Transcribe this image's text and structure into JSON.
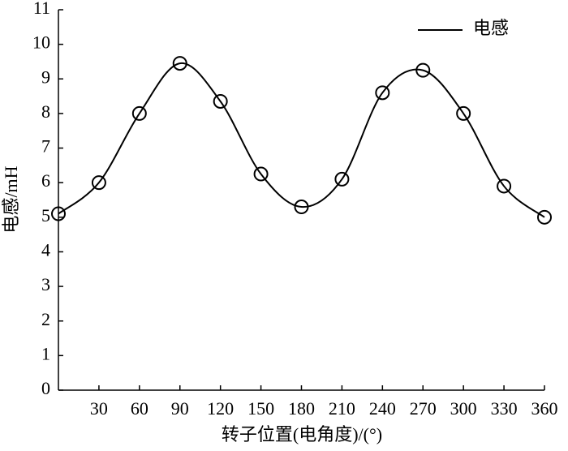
{
  "chart_data": {
    "type": "line",
    "x_label": "转子位置(电角度)/(°)",
    "y_label": "电感/mH",
    "x": [
      0,
      30,
      60,
      90,
      120,
      150,
      180,
      210,
      240,
      270,
      300,
      330,
      360
    ],
    "series": [
      {
        "name": "电感",
        "color": "#000000",
        "values": [
          5.1,
          6.0,
          8.0,
          9.45,
          8.35,
          6.25,
          5.3,
          6.1,
          8.6,
          9.25,
          8.0,
          5.9,
          5.0
        ]
      }
    ],
    "xlim": [
      0,
      360
    ],
    "xticks": [
      30,
      60,
      90,
      120,
      150,
      180,
      210,
      240,
      270,
      300,
      330,
      360
    ],
    "ylim": [
      0,
      11
    ],
    "yticks": [
      0,
      1,
      2,
      3,
      4,
      5,
      6,
      7,
      8,
      9,
      10,
      11
    ],
    "legend": "upper right",
    "markers": "open-circle",
    "smooth": true
  }
}
